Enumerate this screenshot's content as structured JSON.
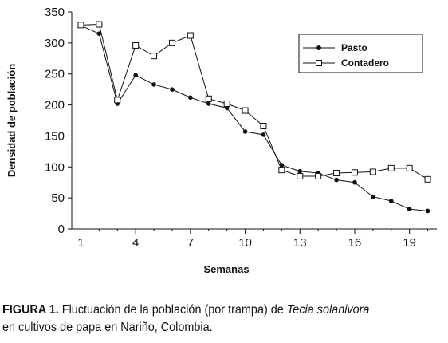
{
  "chart_data": {
    "type": "line",
    "xlabel": "Semanas",
    "ylabel": "Densidad de población",
    "xlim": [
      0.5,
      20.5
    ],
    "ylim": [
      0,
      350
    ],
    "x_ticks": [
      1,
      4,
      7,
      10,
      13,
      16,
      19
    ],
    "y_ticks": [
      0,
      50,
      100,
      150,
      200,
      250,
      300,
      350
    ],
    "grid": false,
    "legend_position": "top-right",
    "x": [
      1,
      2,
      3,
      4,
      5,
      6,
      7,
      8,
      9,
      10,
      11,
      12,
      13,
      14,
      15,
      16,
      17,
      18,
      19,
      20
    ],
    "series": [
      {
        "name": "Pasto",
        "marker": "filled-circle",
        "values": [
          328,
          315,
          202,
          248,
          233,
          225,
          212,
          202,
          195,
          157,
          152,
          103,
          93,
          90,
          79,
          75,
          52,
          45,
          32,
          29
        ]
      },
      {
        "name": "Contadero",
        "marker": "open-square",
        "values": [
          329,
          330,
          208,
          296,
          279,
          300,
          312,
          210,
          202,
          191,
          166,
          95,
          85,
          85,
          90,
          91,
          92,
          98,
          98,
          80
        ]
      }
    ]
  },
  "caption": {
    "label": "FIGURA 1.",
    "text_before": " Fluctuación de la población (por trampa) de ",
    "species": "Tecia solanivora",
    "line2": "en cultivos de papa en Nariño, Colombia."
  }
}
